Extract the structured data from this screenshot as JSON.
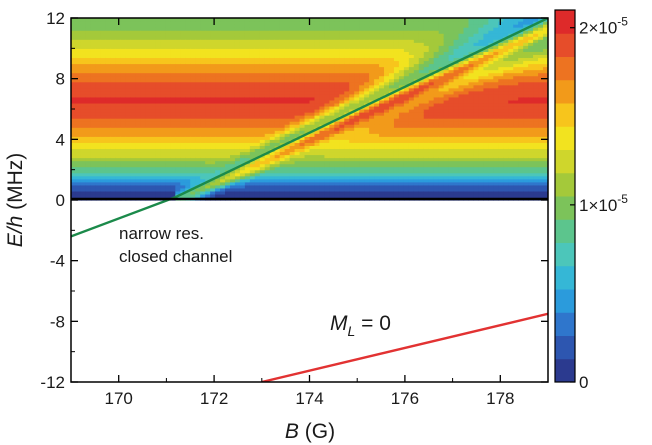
{
  "chart_data": {
    "type": "heatmap",
    "xlabel": {
      "var": "B",
      "unit": " (G)"
    },
    "ylabel": {
      "var": "E/h",
      "unit": " (MHz)"
    },
    "xlim": [
      169,
      179
    ],
    "ylim": [
      -12,
      12
    ],
    "x_ticks": [
      "170",
      "172",
      "174",
      "176",
      "178"
    ],
    "x_tick_values": [
      170,
      172,
      174,
      176,
      178
    ],
    "y_ticks": [
      "12",
      "8",
      "4",
      "0",
      "-4",
      "-8",
      "-12"
    ],
    "y_tick_values": [
      12,
      8,
      4,
      0,
      -4,
      -8,
      -12
    ],
    "heatmap_region": {
      "ymin": 0,
      "ymax": 12
    },
    "colormap": [
      "#2b3a8f",
      "#2d56b0",
      "#2f76cc",
      "#2b9bdc",
      "#35b7d6",
      "#4cc6ba",
      "#5cc58d",
      "#7cc35a",
      "#a4c93a",
      "#cfd62c",
      "#f2e31f",
      "#f7c51c",
      "#f29a1a",
      "#ed7321",
      "#e64d2a",
      "#de2a2a"
    ],
    "colorbar": {
      "min": 0,
      "max": 2.1e-05,
      "ticks": [
        {
          "value": 2e-05,
          "mantissa": "2×10",
          "exp": "-5"
        },
        {
          "value": 1e-05,
          "mantissa": "1×10",
          "exp": "-5"
        },
        {
          "value": 0,
          "mantissa": "0",
          "exp": ""
        }
      ]
    },
    "lines": [
      {
        "name": "closed-channel",
        "color": "#1b8a4a",
        "points": [
          [
            169,
            -2.4
          ],
          [
            171.2,
            0.2
          ],
          [
            179,
            12
          ]
        ]
      },
      {
        "name": "ML0",
        "color": "#e23232",
        "points": [
          [
            173,
            -12
          ],
          [
            179,
            -7.5
          ]
        ]
      }
    ],
    "annotations": {
      "closed_channel_line1": "narrow res.",
      "closed_channel_line2": "closed channel",
      "ml_var": "M",
      "ml_sub": "L",
      "ml_rest": " = 0"
    }
  }
}
